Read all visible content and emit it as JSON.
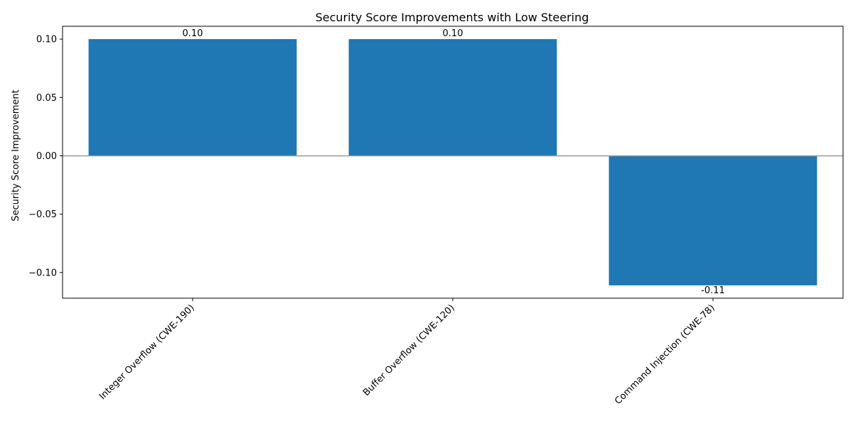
{
  "chart_data": {
    "type": "bar",
    "title": "Security Score Improvements with Low Steering",
    "xlabel": "",
    "ylabel": "Security Score Improvement",
    "categories": [
      "Integer Overflow (CWE-190)",
      "Buffer Overflow (CWE-120)",
      "Command Injection (CWE-78)"
    ],
    "values": [
      0.1,
      0.1,
      -0.111
    ],
    "value_labels": [
      "0.10",
      "0.10",
      "-0.11"
    ],
    "ylim": [
      -0.122,
      0.111
    ],
    "yticks": [
      -0.1,
      -0.05,
      0.0,
      0.05,
      0.1
    ],
    "ytick_labels": [
      "−0.10",
      "−0.05",
      "0.00",
      "0.05",
      "0.10"
    ],
    "bar_color": "#1f77b4",
    "zero_line_color": "#999999",
    "grid": false,
    "legend": "none"
  }
}
